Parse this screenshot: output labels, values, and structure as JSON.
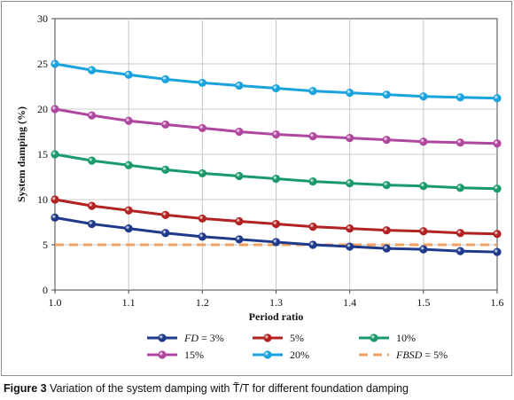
{
  "chart_data": {
    "type": "line",
    "xlabel": "Period ratio",
    "ylabel": "System damping (%)",
    "xlim": [
      1.0,
      1.6
    ],
    "ylim": [
      0,
      30
    ],
    "xticks": [
      "1.0",
      "1.1",
      "1.2",
      "1.3",
      "1.4",
      "1.5",
      "1.6"
    ],
    "yticks": [
      "0",
      "5",
      "10",
      "15",
      "20",
      "25",
      "30"
    ],
    "grid": true,
    "legend_position": "bottom",
    "x": [
      1.0,
      1.05,
      1.1,
      1.15,
      1.2,
      1.25,
      1.3,
      1.35,
      1.4,
      1.45,
      1.5,
      1.55,
      1.6
    ],
    "series": [
      {
        "name": "FD = 3%",
        "name_prefix": "FD",
        "name_suffix": " = 3%",
        "color": "#1f3a8a",
        "marker": true,
        "dashed": false,
        "values": [
          8.0,
          7.3,
          6.8,
          6.3,
          5.9,
          5.6,
          5.3,
          5.0,
          4.8,
          4.6,
          4.5,
          4.3,
          4.2
        ]
      },
      {
        "name": "5%",
        "color": "#b22222",
        "marker": true,
        "dashed": false,
        "values": [
          10.0,
          9.3,
          8.8,
          8.3,
          7.9,
          7.6,
          7.3,
          7.0,
          6.8,
          6.6,
          6.5,
          6.3,
          6.2
        ]
      },
      {
        "name": "10%",
        "color": "#1a9a6a",
        "marker": true,
        "dashed": false,
        "values": [
          15.0,
          14.3,
          13.8,
          13.3,
          12.9,
          12.6,
          12.3,
          12.0,
          11.8,
          11.6,
          11.5,
          11.3,
          11.2
        ]
      },
      {
        "name": "15%",
        "color": "#b0479f",
        "marker": true,
        "dashed": false,
        "values": [
          20.0,
          19.3,
          18.7,
          18.3,
          17.9,
          17.5,
          17.2,
          17.0,
          16.8,
          16.6,
          16.4,
          16.3,
          16.2
        ]
      },
      {
        "name": "20%",
        "color": "#1aa3de",
        "marker": true,
        "dashed": false,
        "values": [
          25.0,
          24.3,
          23.8,
          23.3,
          22.9,
          22.6,
          22.3,
          22.0,
          21.8,
          21.6,
          21.4,
          21.3,
          21.2
        ]
      },
      {
        "name": "FBSD = 5%",
        "name_prefix": "FBSD",
        "name_suffix": " = 5%",
        "color": "#f0a160",
        "marker": false,
        "dashed": true,
        "values": [
          5,
          5,
          5,
          5,
          5,
          5,
          5,
          5,
          5,
          5,
          5,
          5,
          5
        ]
      }
    ]
  },
  "caption": {
    "label": "Figure 3",
    "text": "Variation of the system damping with T̃/T for different foundation damping"
  }
}
